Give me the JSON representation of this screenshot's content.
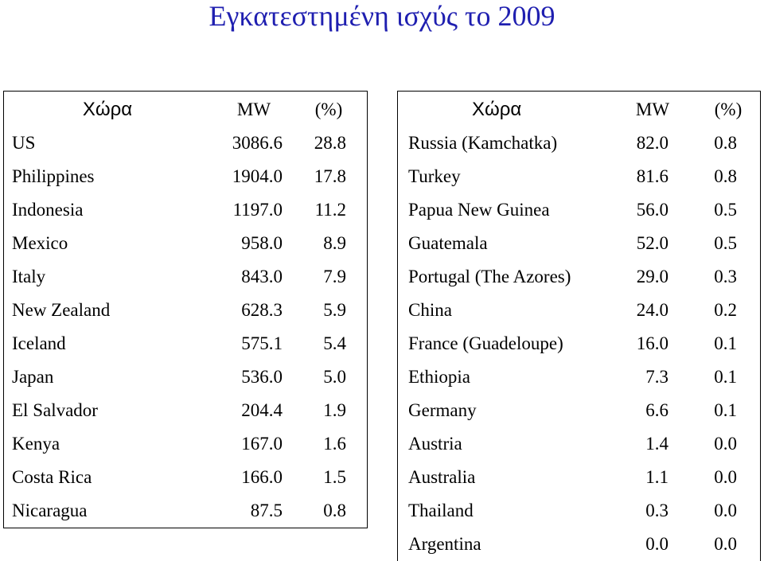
{
  "title": "Εγκατεστημένη ισχύς το 2009",
  "left_table": {
    "headers": {
      "country": "Χώρα",
      "mw": "MW",
      "pct": "(%)"
    },
    "rows": [
      {
        "country": "US",
        "mw": "3086.6",
        "pct": "28.8"
      },
      {
        "country": "Philippines",
        "mw": "1904.0",
        "pct": "17.8"
      },
      {
        "country": "Indonesia",
        "mw": "1197.0",
        "pct": "11.2"
      },
      {
        "country": "Mexico",
        "mw": "958.0",
        "pct": "8.9"
      },
      {
        "country": "Italy",
        "mw": "843.0",
        "pct": "7.9"
      },
      {
        "country": "New Zealand",
        "mw": "628.3",
        "pct": "5.9"
      },
      {
        "country": "Iceland",
        "mw": "575.1",
        "pct": "5.4"
      },
      {
        "country": "Japan",
        "mw": "536.0",
        "pct": "5.0"
      },
      {
        "country": "El Salvador",
        "mw": "204.4",
        "pct": "1.9"
      },
      {
        "country": "Kenya",
        "mw": "167.0",
        "pct": "1.6"
      },
      {
        "country": "Costa Rica",
        "mw": "166.0",
        "pct": "1.5"
      },
      {
        "country": "Nicaragua",
        "mw": "87.5",
        "pct": "0.8"
      }
    ]
  },
  "right_table": {
    "headers": {
      "country": "Χώρα",
      "mw": "MW",
      "pct": "(%)"
    },
    "rows": [
      {
        "country": "Russia (Kamchatka)",
        "mw": "82.0",
        "pct": "0.8"
      },
      {
        "country": "Turkey",
        "mw": "81.6",
        "pct": "0.8"
      },
      {
        "country": "Papua New Guinea",
        "mw": "56.0",
        "pct": "0.5"
      },
      {
        "country": "Guatemala",
        "mw": "52.0",
        "pct": "0.5"
      },
      {
        "country": "Portugal (The Azores)",
        "mw": "29.0",
        "pct": "0.3"
      },
      {
        "country": "China",
        "mw": "24.0",
        "pct": "0.2"
      },
      {
        "country": "France (Guadeloupe)",
        "mw": "16.0",
        "pct": "0.1"
      },
      {
        "country": "Ethiopia",
        "mw": "7.3",
        "pct": "0.1"
      },
      {
        "country": "Germany",
        "mw": "6.6",
        "pct": "0.1"
      },
      {
        "country": "Austria",
        "mw": "1.4",
        "pct": "0.0"
      },
      {
        "country": "Australia",
        "mw": "1.1",
        "pct": "0.0"
      },
      {
        "country": "Thailand",
        "mw": "0.3",
        "pct": "0.0"
      },
      {
        "country": "Argentina",
        "mw": "0.0",
        "pct": "0.0"
      }
    ]
  },
  "colors": {
    "title": "#1f1fb0",
    "text": "#000000",
    "border": "#000000"
  }
}
